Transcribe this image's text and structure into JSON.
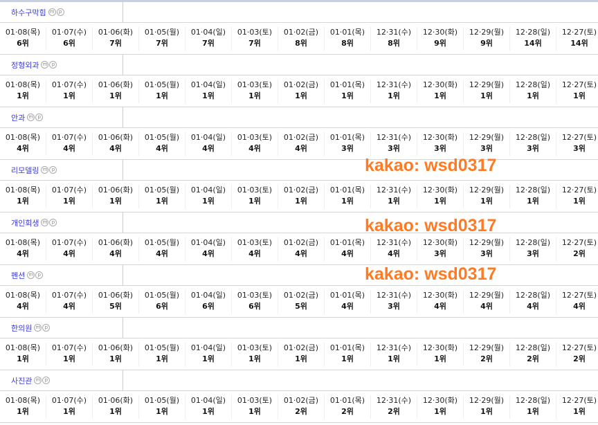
{
  "dates": [
    "01·08(목)",
    "01·07(수)",
    "01·06(화)",
    "01·05(월)",
    "01·04(일)",
    "01·03(토)",
    "01·02(금)",
    "01·01(목)",
    "12·31(수)",
    "12·30(화)",
    "12·29(월)",
    "12·28(일)",
    "12·27(토)"
  ],
  "badges": [
    "m",
    "p"
  ],
  "keywords": [
    {
      "name": "하수구막힘",
      "ranks": [
        "6위",
        "6위",
        "7위",
        "7위",
        "7위",
        "7위",
        "8위",
        "8위",
        "8위",
        "9위",
        "9위",
        "14위",
        "14위"
      ]
    },
    {
      "name": "정형외과",
      "ranks": [
        "1위",
        "1위",
        "1위",
        "1위",
        "1위",
        "1위",
        "1위",
        "1위",
        "1위",
        "1위",
        "1위",
        "1위",
        "1위"
      ]
    },
    {
      "name": "안과",
      "ranks": [
        "4위",
        "4위",
        "4위",
        "4위",
        "4위",
        "4위",
        "4위",
        "3위",
        "3위",
        "3위",
        "3위",
        "3위",
        "3위"
      ]
    },
    {
      "name": "리모델링",
      "ranks": [
        "1위",
        "1위",
        "1위",
        "1위",
        "1위",
        "1위",
        "1위",
        "1위",
        "1위",
        "1위",
        "1위",
        "1위",
        "1위"
      ]
    },
    {
      "name": "개인회생",
      "ranks": [
        "4위",
        "4위",
        "4위",
        "4위",
        "4위",
        "4위",
        "4위",
        "4위",
        "4위",
        "3위",
        "3위",
        "3위",
        "2위"
      ]
    },
    {
      "name": "펜션",
      "ranks": [
        "4위",
        "4위",
        "5위",
        "6위",
        "6위",
        "6위",
        "5위",
        "4위",
        "3위",
        "4위",
        "4위",
        "4위",
        "4위"
      ]
    },
    {
      "name": "한의원",
      "ranks": [
        "1위",
        "1위",
        "1위",
        "1위",
        "1위",
        "1위",
        "1위",
        "1위",
        "1위",
        "1위",
        "2위",
        "2위",
        "2위"
      ]
    },
    {
      "name": "사진관",
      "ranks": [
        "1위",
        "1위",
        "1위",
        "1위",
        "1위",
        "1위",
        "2위",
        "2위",
        "2위",
        "1위",
        "1위",
        "1위",
        "1위"
      ]
    }
  ],
  "watermark": "kakao: wsd0317",
  "accent": "#ff7a22"
}
